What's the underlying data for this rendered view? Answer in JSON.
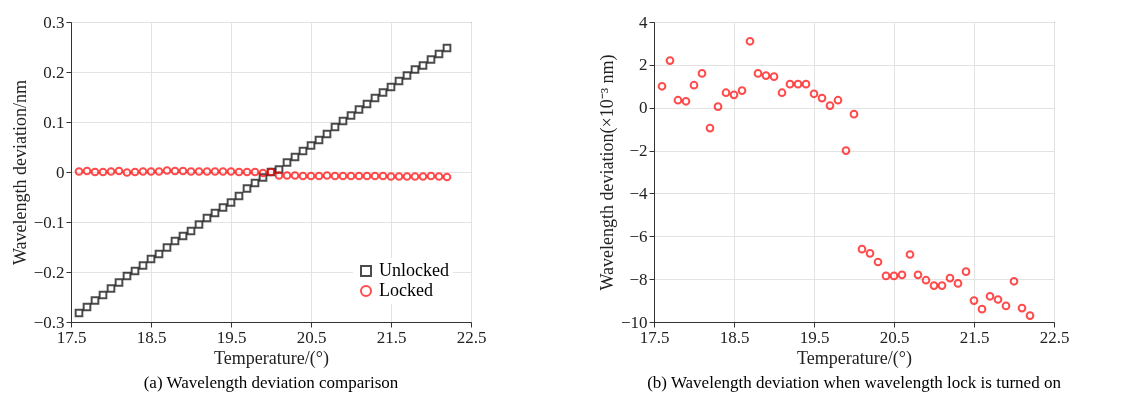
{
  "chart_data": [
    {
      "type": "scatter",
      "title": "(a) Wavelength deviation comparison",
      "xlabel": "Temperature/(°)",
      "ylabel": "Wavelength deviation/nm",
      "x": [
        17.6,
        17.7,
        17.8,
        17.9,
        18.0,
        18.1,
        18.2,
        18.3,
        18.4,
        18.5,
        18.6,
        18.7,
        18.8,
        18.9,
        19.0,
        19.1,
        19.2,
        19.3,
        19.4,
        19.5,
        19.6,
        19.7,
        19.8,
        19.9,
        20.0,
        20.1,
        20.2,
        20.3,
        20.4,
        20.5,
        20.6,
        20.7,
        20.8,
        20.9,
        21.0,
        21.1,
        21.2,
        21.3,
        21.4,
        21.5,
        21.6,
        21.7,
        21.8,
        21.9,
        22.0,
        22.1,
        22.2
      ],
      "series": [
        {
          "name": "Unlocked",
          "color": "#000000",
          "marker": "square",
          "values": [
            -0.282,
            -0.27,
            -0.257,
            -0.246,
            -0.233,
            -0.221,
            -0.208,
            -0.198,
            -0.187,
            -0.174,
            -0.164,
            -0.151,
            -0.138,
            -0.128,
            -0.118,
            -0.105,
            -0.092,
            -0.082,
            -0.071,
            -0.061,
            -0.048,
            -0.033,
            -0.022,
            -0.011,
            0.0,
            0.005,
            0.019,
            0.03,
            0.042,
            0.053,
            0.064,
            0.076,
            0.09,
            0.102,
            0.113,
            0.125,
            0.136,
            0.148,
            0.159,
            0.17,
            0.182,
            0.193,
            0.205,
            0.213,
            0.225,
            0.236,
            0.248
          ]
        },
        {
          "name": "Locked",
          "color": "#ff0000",
          "marker": "circle",
          "values": [
            0.001,
            0.002,
            0.0,
            0.0,
            0.001,
            0.002,
            -0.001,
            0.0,
            0.001,
            0.001,
            0.001,
            0.003,
            0.002,
            0.002,
            0.001,
            0.001,
            0.001,
            0.001,
            0.001,
            0.001,
            0.0,
            0.0,
            0.0,
            -0.002,
            0.0,
            -0.007,
            -0.007,
            -0.007,
            -0.008,
            -0.008,
            -0.008,
            -0.007,
            -0.008,
            -0.008,
            -0.008,
            -0.008,
            -0.008,
            -0.008,
            -0.008,
            -0.009,
            -0.009,
            -0.009,
            -0.009,
            -0.009,
            -0.008,
            -0.009,
            -0.01
          ]
        }
      ],
      "xlim": [
        17.5,
        22.5
      ],
      "xticks": [
        17.5,
        18.5,
        19.5,
        20.5,
        21.5,
        22.5
      ],
      "ylim": [
        -0.3,
        0.3
      ],
      "yticks": [
        -0.3,
        -0.2,
        -0.1,
        0,
        0.1,
        0.2,
        0.3
      ],
      "grid": true,
      "legend": "bottom right"
    },
    {
      "type": "scatter",
      "title": "(b) Wavelength deviation when wavelength lock is turned on",
      "xlabel": "Temperature/(°)",
      "ylabel": "Wavelength deviation(×10⁻³ nm)",
      "x": [
        17.6,
        17.7,
        17.8,
        17.9,
        18.0,
        18.1,
        18.2,
        18.3,
        18.4,
        18.5,
        18.6,
        18.7,
        18.8,
        18.9,
        19.0,
        19.1,
        19.2,
        19.3,
        19.4,
        19.5,
        19.6,
        19.7,
        19.8,
        19.9,
        20.0,
        20.1,
        20.2,
        20.3,
        20.4,
        20.5,
        20.6,
        20.7,
        20.8,
        20.9,
        21.0,
        21.1,
        21.2,
        21.3,
        21.4,
        21.5,
        21.6,
        21.7,
        21.8,
        21.9,
        22.0,
        22.1,
        22.2
      ],
      "series": [
        {
          "color": "#ff0000",
          "marker": "circle",
          "values": [
            1.0,
            2.2,
            0.35,
            0.3,
            1.05,
            1.6,
            -0.95,
            0.05,
            0.7,
            0.6,
            0.8,
            3.1,
            1.6,
            1.5,
            1.45,
            0.7,
            1.1,
            1.1,
            1.1,
            0.65,
            0.45,
            0.1,
            0.35,
            -2.0,
            -0.3,
            -6.6,
            -6.8,
            -7.2,
            -7.85,
            -7.85,
            -7.8,
            -6.85,
            -7.8,
            -8.05,
            -8.3,
            -8.3,
            -7.95,
            -8.2,
            -7.65,
            -9.0,
            -9.4,
            -8.8,
            -8.95,
            -9.25,
            -8.1,
            -9.35,
            -9.7
          ]
        }
      ],
      "xlim": [
        17.5,
        22.5
      ],
      "xticks": [
        17.5,
        18.5,
        19.5,
        20.5,
        21.5,
        22.5
      ],
      "ylim": [
        -10,
        4
      ],
      "yticks": [
        -10,
        -8,
        -6,
        -4,
        -2,
        0,
        2,
        4
      ],
      "grid": true
    }
  ]
}
